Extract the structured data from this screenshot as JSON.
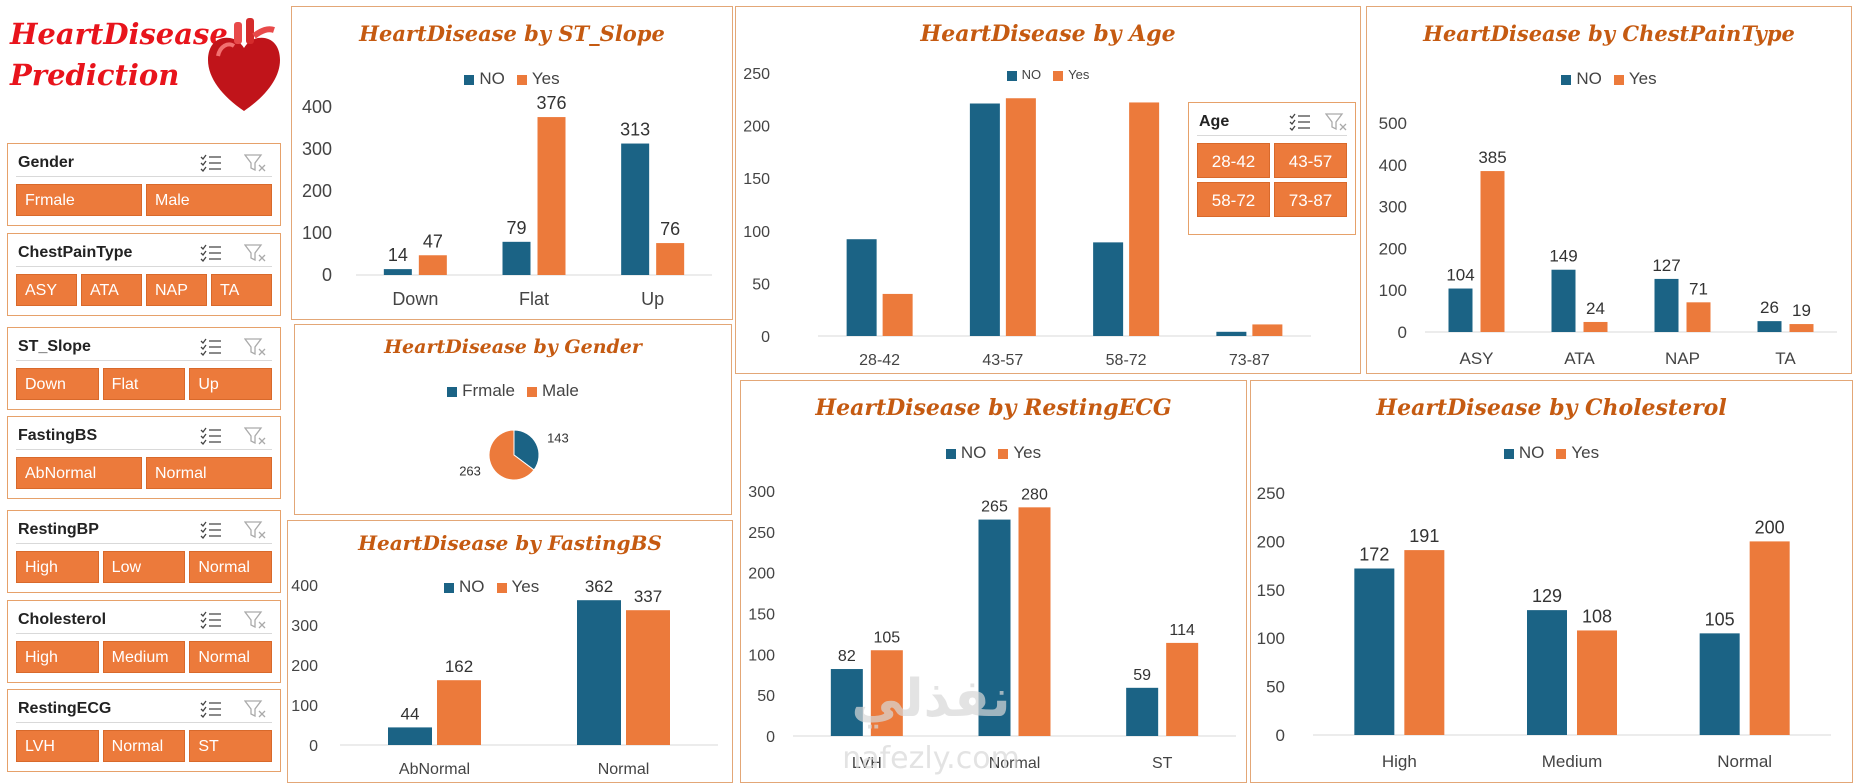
{
  "app": {
    "title": "HeartDisease\nPrediction"
  },
  "slicers": [
    {
      "title": "Gender",
      "items": [
        "Frmale",
        "Male"
      ]
    },
    {
      "title": "ChestPainType",
      "items": [
        "ASY",
        "ATA",
        "NAP",
        "TA"
      ]
    },
    {
      "title": "ST_Slope",
      "items": [
        "Down",
        "Flat",
        "Up"
      ]
    },
    {
      "title": "FastingBS",
      "items": [
        "AbNormal",
        "Normal"
      ]
    },
    {
      "title": "RestingBP",
      "items": [
        "High",
        "Low",
        "Normal"
      ]
    },
    {
      "title": "Cholesterol",
      "items": [
        "High",
        "Medium",
        "Normal"
      ]
    },
    {
      "title": "RestingECG",
      "items": [
        "LVH",
        "Normal",
        "ST"
      ]
    }
  ],
  "age_slicer": {
    "title": "Age",
    "items": [
      "28-42",
      "43-57",
      "58-72",
      "73-87"
    ]
  },
  "colors": {
    "no": "#1b6385",
    "yes": "#ec7a3b",
    "title": "#c55a11",
    "brand": "#e8141c"
  },
  "watermark": {
    "text": "nafezly.com"
  },
  "chart_data": [
    {
      "type": "bar",
      "title": "HeartDisease by ST_Slope",
      "categories": [
        "Down",
        "Flat",
        "Up"
      ],
      "series": [
        {
          "name": "NO",
          "values": [
            14,
            79,
            313
          ]
        },
        {
          "name": "Yes",
          "values": [
            47,
            376,
            76
          ]
        }
      ],
      "ylim": [
        0,
        400
      ],
      "yticks": [
        0,
        100,
        200,
        300,
        400
      ],
      "data_labels": true,
      "legend": "top"
    },
    {
      "type": "bar",
      "title": "HeartDisease by Age",
      "categories": [
        "28-42",
        "43-57",
        "58-72",
        "73-87"
      ],
      "series": [
        {
          "name": "NO",
          "values": [
            92,
            221,
            89,
            4
          ]
        },
        {
          "name": "Yes",
          "values": [
            40,
            226,
            222,
            11
          ]
        }
      ],
      "ylim": [
        0,
        250
      ],
      "yticks": [
        0,
        50,
        100,
        150,
        200,
        250
      ],
      "data_labels": false,
      "legend": "top"
    },
    {
      "type": "bar",
      "title": "HeartDisease by ChestPainType",
      "categories": [
        "ASY",
        "ATA",
        "NAP",
        "TA"
      ],
      "series": [
        {
          "name": "NO",
          "values": [
            104,
            149,
            127,
            26
          ]
        },
        {
          "name": "Yes",
          "values": [
            385,
            24,
            71,
            19
          ]
        }
      ],
      "ylim": [
        0,
        500
      ],
      "yticks": [
        0,
        100,
        200,
        300,
        400,
        500
      ],
      "data_labels": true,
      "legend": "top"
    },
    {
      "type": "pie",
      "title": "HeartDisease by Gender",
      "categories": [
        "Frmale",
        "Male"
      ],
      "values": [
        143,
        263
      ],
      "legend": "top"
    },
    {
      "type": "bar",
      "title": "HeartDisease by FastingBS",
      "categories": [
        "AbNormal",
        "Normal"
      ],
      "series": [
        {
          "name": "NO",
          "values": [
            44,
            362
          ]
        },
        {
          "name": "Yes",
          "values": [
            162,
            337
          ]
        }
      ],
      "ylim": [
        0,
        400
      ],
      "yticks": [
        0,
        100,
        200,
        300,
        400
      ],
      "data_labels": true,
      "legend": "top-right"
    },
    {
      "type": "bar",
      "title": "HeartDisease by RestingECG",
      "categories": [
        "LVH",
        "Normal",
        "ST"
      ],
      "series": [
        {
          "name": "NO",
          "values": [
            82,
            265,
            59
          ]
        },
        {
          "name": "Yes",
          "values": [
            105,
            280,
            114
          ]
        }
      ],
      "ylim": [
        0,
        300
      ],
      "yticks": [
        0,
        50,
        100,
        150,
        200,
        250,
        300
      ],
      "data_labels": true,
      "legend": "top"
    },
    {
      "type": "bar",
      "title": "HeartDisease by Cholesterol",
      "categories": [
        "High",
        "Medium",
        "Normal"
      ],
      "series": [
        {
          "name": "NO",
          "values": [
            172,
            129,
            105
          ]
        },
        {
          "name": "Yes",
          "values": [
            191,
            108,
            200
          ]
        }
      ],
      "ylim": [
        0,
        250
      ],
      "yticks": [
        0,
        50,
        100,
        150,
        200,
        250
      ],
      "data_labels": true,
      "legend": "top"
    }
  ]
}
